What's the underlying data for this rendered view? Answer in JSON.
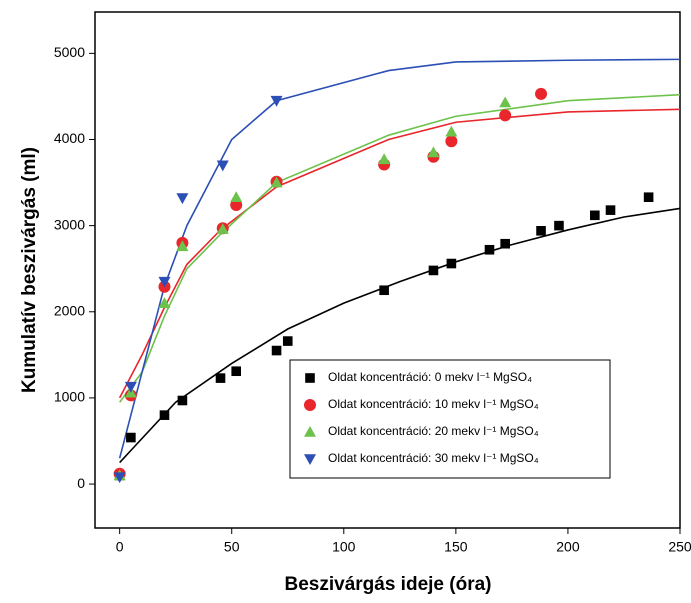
{
  "chart_data": {
    "type": "scatter",
    "x_label": "Beszivárgás ideje (óra)",
    "y_label": "Kumulatív beszivárgás (ml)",
    "xlim": [
      -11,
      250
    ],
    "xticks": [
      0,
      50,
      100,
      150,
      200,
      250
    ],
    "ylim": [
      -510,
      5480
    ],
    "yticks": [
      0,
      1000,
      2000,
      3000,
      4000,
      5000
    ],
    "legend": "lower-right",
    "series": [
      {
        "name": "Oldat koncentráció:  0 mekv l⁻¹ MgSO₄",
        "color": "#000000",
        "marker": "square",
        "x": [
          0,
          5,
          20,
          28,
          45,
          52,
          70,
          75,
          118,
          140,
          148,
          165,
          172,
          188,
          196,
          212,
          219,
          236
        ],
        "values": [
          100,
          540,
          800,
          970,
          1230,
          1310,
          1550,
          1660,
          2250,
          2480,
          2560,
          2720,
          2790,
          2940,
          3000,
          3120,
          3180,
          3330
        ],
        "fit": {
          "x": [
            0,
            25,
            50,
            75,
            100,
            125,
            150,
            175,
            200,
            225,
            250
          ],
          "values": [
            250,
            950,
            1400,
            1800,
            2100,
            2350,
            2580,
            2780,
            2950,
            3100,
            3200
          ]
        }
      },
      {
        "name": "Oldat koncentráció: 10 mekv l⁻¹ MgSO₄",
        "color": "#e8262b",
        "marker": "circle",
        "x": [
          0,
          5,
          20,
          28,
          46,
          52,
          70,
          118,
          140,
          148,
          172,
          188
        ],
        "values": [
          120,
          1030,
          2290,
          2800,
          2970,
          3240,
          3510,
          3710,
          3800,
          3980,
          4280,
          4530
        ],
        "fit": {
          "x": [
            0,
            10,
            20,
            30,
            45,
            70,
            120,
            150,
            200,
            250
          ],
          "values": [
            1000,
            1500,
            2050,
            2550,
            2950,
            3450,
            4000,
            4200,
            4320,
            4350
          ]
        }
      },
      {
        "name": "Oldat koncentráció: 20 mekv l⁻¹ MgSO₄",
        "color": "#6cc24a",
        "marker": "triangle-up",
        "x": [
          0,
          5,
          20,
          28,
          46,
          52,
          70,
          118,
          140,
          148,
          172
        ],
        "values": [
          100,
          1060,
          2100,
          2760,
          2960,
          3330,
          3500,
          3770,
          3850,
          4090,
          4430
        ],
        "fit": {
          "x": [
            0,
            10,
            20,
            30,
            45,
            70,
            120,
            150,
            200,
            250
          ],
          "values": [
            950,
            1300,
            1950,
            2500,
            2900,
            3500,
            4050,
            4270,
            4450,
            4520
          ]
        }
      },
      {
        "name": "Oldat koncentráció: 30 mekv l⁻¹ MgSO₄",
        "color": "#2b4fb5",
        "marker": "triangle-down",
        "x": [
          0,
          5,
          20,
          28,
          46,
          70
        ],
        "values": [
          80,
          1130,
          2350,
          3320,
          3700,
          4450
        ],
        "fit": {
          "x": [
            0,
            10,
            20,
            30,
            50,
            70,
            120,
            150,
            200,
            250
          ],
          "values": [
            300,
            1300,
            2300,
            3000,
            4000,
            4450,
            4800,
            4900,
            4920,
            4930
          ]
        }
      }
    ]
  }
}
